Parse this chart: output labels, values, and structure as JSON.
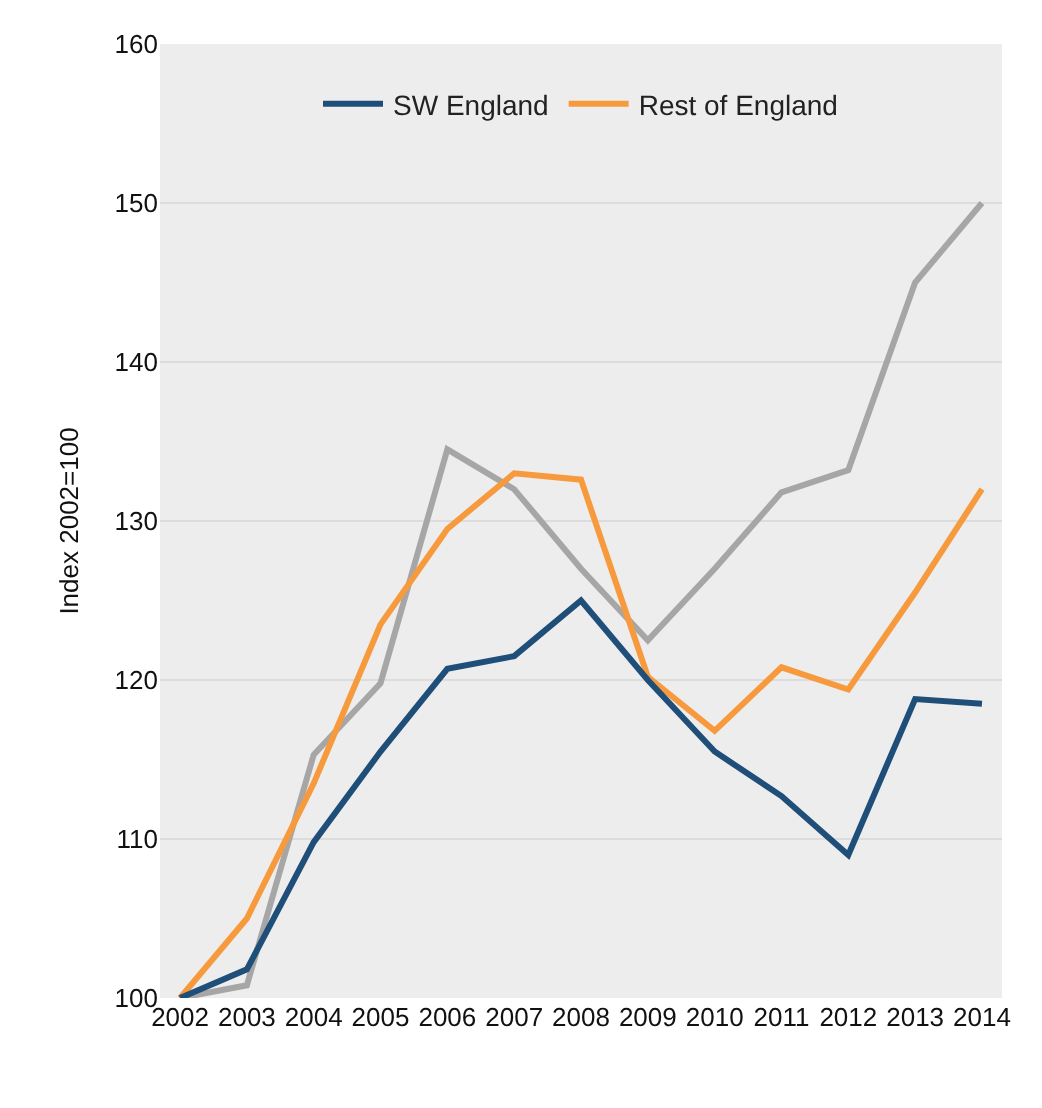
{
  "chart_data": {
    "type": "line",
    "ylabel": "Index 2002=100",
    "categories": [
      "2002",
      "2003",
      "2004",
      "2005",
      "2006",
      "2007",
      "2008",
      "2009",
      "2010",
      "2011",
      "2012",
      "2013",
      "2014"
    ],
    "series": [
      {
        "name": "SW England",
        "color": "#1f4e79",
        "values": [
          100,
          101.8,
          109.8,
          115.5,
          120.7,
          121.5,
          125,
          120,
          115.5,
          112.7,
          109,
          118.8,
          118.5
        ]
      },
      {
        "name": "Rest of England",
        "color": "#f79a3e",
        "values": [
          100,
          105,
          113.5,
          123.5,
          129.5,
          133,
          132.6,
          120.2,
          116.8,
          120.8,
          119.4,
          125.5,
          132
        ]
      },
      {
        "color": "#a6a6a6",
        "values": [
          100,
          100.8,
          115.3,
          119.8,
          134.5,
          132,
          127,
          122.5,
          127,
          131.8,
          133.2,
          145,
          150
        ]
      }
    ],
    "ylim": [
      100,
      160
    ],
    "yticks": [
      100,
      110,
      120,
      130,
      140,
      150,
      160
    ],
    "grid": "y",
    "legend": "top",
    "marker": "none",
    "line_style": "solid"
  }
}
